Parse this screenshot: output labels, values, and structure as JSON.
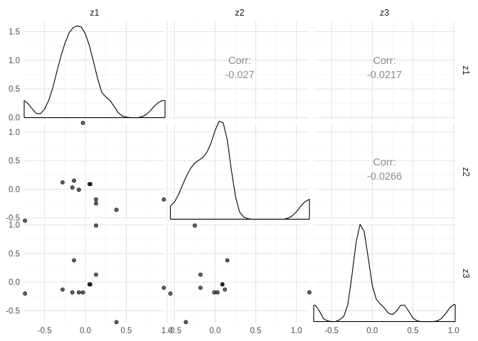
{
  "chart_data": {
    "type": "scatter",
    "variables": [
      "z1",
      "z2",
      "z3"
    ],
    "column_strips": [
      "z1",
      "z2",
      "z3"
    ],
    "row_strips": [
      "z1",
      "z2",
      "z3"
    ],
    "x_ticks": {
      "z1": [
        -0.5,
        0.0,
        0.5,
        1.0
      ],
      "z2": [
        -0.5,
        0.0,
        0.5,
        1.0
      ],
      "z3": [
        -0.5,
        0.0,
        0.5,
        1.0
      ]
    },
    "x_tick_labels": {
      "z1": [
        "-0.5",
        "0.0",
        "0.5",
        "1.0"
      ],
      "z2": [
        "-0.5",
        "0.0",
        "0.5",
        "1.0"
      ],
      "z3": [
        "-0.5",
        "0.0",
        "0.5",
        "1.0"
      ]
    },
    "y_ticks_row1": [
      0.0,
      0.5,
      1.0,
      1.5
    ],
    "y_tick_labels_row1": [
      "0.0",
      "0.5",
      "1.0",
      "1.5"
    ],
    "y_ticks_row2": [
      -0.5,
      0.0,
      0.5,
      1.0
    ],
    "y_tick_labels_row2": [
      "-0.5",
      "0.0",
      "0.5",
      "1.0"
    ],
    "y_ticks_row3": [
      -0.5,
      0.0,
      0.5,
      1.0
    ],
    "y_tick_labels_row3": [
      "-0.5",
      "0.0",
      "0.5",
      "1.0"
    ],
    "density_ylim": [
      -0.03,
      1.68
    ],
    "x_ranges": {
      "z1": [
        -0.75,
        0.975
      ],
      "z2": [
        -0.555,
        1.16
      ],
      "z3": [
        -0.72,
        1.02
      ]
    },
    "y_ranges": {
      "z2": [
        -0.555,
        1.16
      ],
      "z3": [
        -0.72,
        1.02
      ]
    },
    "correlations": [
      {
        "row": "z1",
        "col": "z2",
        "label": "Corr:",
        "value": "-0.027"
      },
      {
        "row": "z1",
        "col": "z3",
        "label": "Corr:",
        "value": "-0.0217"
      },
      {
        "row": "z2",
        "col": "z3",
        "label": "Corr:",
        "value": "-0.0266"
      }
    ],
    "points": [
      {
        "z1": -0.74,
        "z2": -0.55,
        "z3": -0.2
      },
      {
        "z1": -0.28,
        "z2": 0.12,
        "z3": -0.13
      },
      {
        "z1": -0.14,
        "z2": 0.15,
        "z3": 0.38
      },
      {
        "z1": -0.16,
        "z2": 0.03,
        "z3": -0.18
      },
      {
        "z1": -0.08,
        "z2": -0.01,
        "z3": -0.18
      },
      {
        "z1": -0.03,
        "z2": 1.16,
        "z3": -0.18
      },
      {
        "z1": 0.05,
        "z2": 0.09,
        "z3": -0.04
      },
      {
        "z1": 0.06,
        "z2": 0.09,
        "z3": -0.04
      },
      {
        "z1": 0.13,
        "z2": -0.18,
        "z3": 0.13
      },
      {
        "z1": 0.13,
        "z2": -0.25,
        "z3": 0.99
      },
      {
        "z1": 0.38,
        "z2": -0.36,
        "z3": -0.7
      },
      {
        "z1": 0.96,
        "z2": -0.18,
        "z3": -0.1
      }
    ],
    "densities": {
      "z1": {
        "x": [
          -0.75,
          -0.7,
          -0.65,
          -0.6,
          -0.55,
          -0.5,
          -0.45,
          -0.4,
          -0.35,
          -0.3,
          -0.25,
          -0.2,
          -0.15,
          -0.1,
          -0.05,
          0.0,
          0.05,
          0.1,
          0.15,
          0.2,
          0.25,
          0.3,
          0.35,
          0.4,
          0.45,
          0.5,
          0.55,
          0.6,
          0.65,
          0.7,
          0.75,
          0.8,
          0.85,
          0.9,
          0.95,
          0.975
        ],
        "y": [
          0.3,
          0.24,
          0.15,
          0.07,
          0.07,
          0.15,
          0.3,
          0.52,
          0.8,
          1.07,
          1.3,
          1.48,
          1.57,
          1.6,
          1.58,
          1.46,
          1.25,
          0.97,
          0.68,
          0.44,
          0.36,
          0.3,
          0.2,
          0.09,
          0.03,
          0.01,
          0.0,
          0.0,
          0.0,
          0.02,
          0.06,
          0.13,
          0.21,
          0.27,
          0.3,
          0.3
        ]
      },
      "z2": {
        "x": [
          -0.55,
          -0.5,
          -0.45,
          -0.4,
          -0.35,
          -0.3,
          -0.25,
          -0.2,
          -0.15,
          -0.1,
          -0.05,
          0.0,
          0.05,
          0.1,
          0.15,
          0.2,
          0.25,
          0.3,
          0.35,
          0.4,
          0.45,
          0.5,
          0.55,
          0.6,
          0.65,
          0.7,
          0.75,
          0.8,
          0.85,
          0.9,
          0.95,
          1.0,
          1.05,
          1.1,
          1.15,
          1.16
        ],
        "y": [
          0.23,
          0.3,
          0.43,
          0.6,
          0.76,
          0.89,
          0.98,
          1.03,
          1.08,
          1.17,
          1.33,
          1.55,
          1.71,
          1.68,
          1.38,
          0.86,
          0.4,
          0.13,
          0.04,
          0.01,
          0.0,
          0.0,
          0.0,
          0.0,
          0.0,
          0.0,
          0.0,
          0.0,
          0.0,
          0.02,
          0.06,
          0.13,
          0.22,
          0.3,
          0.34,
          0.35
        ]
      },
      "z3": {
        "x": [
          -0.72,
          -0.7,
          -0.65,
          -0.6,
          -0.55,
          -0.5,
          -0.45,
          -0.4,
          -0.35,
          -0.3,
          -0.25,
          -0.2,
          -0.15,
          -0.1,
          -0.05,
          0.0,
          0.05,
          0.1,
          0.15,
          0.2,
          0.25,
          0.3,
          0.35,
          0.4,
          0.45,
          0.5,
          0.55,
          0.6,
          0.65,
          0.7,
          0.75,
          0.8,
          0.85,
          0.9,
          0.95,
          1.0,
          1.02
        ],
        "y": [
          0.28,
          0.28,
          0.18,
          0.05,
          0.01,
          0.0,
          0.0,
          0.03,
          0.09,
          0.29,
          0.79,
          1.35,
          1.67,
          1.55,
          1.1,
          0.62,
          0.38,
          0.3,
          0.23,
          0.14,
          0.12,
          0.18,
          0.28,
          0.28,
          0.17,
          0.06,
          0.01,
          0.0,
          0.0,
          0.0,
          0.0,
          0.01,
          0.05,
          0.13,
          0.23,
          0.29,
          0.29
        ]
      }
    },
    "grid": true,
    "title": "",
    "xlabel": "",
    "ylabel": ""
  }
}
